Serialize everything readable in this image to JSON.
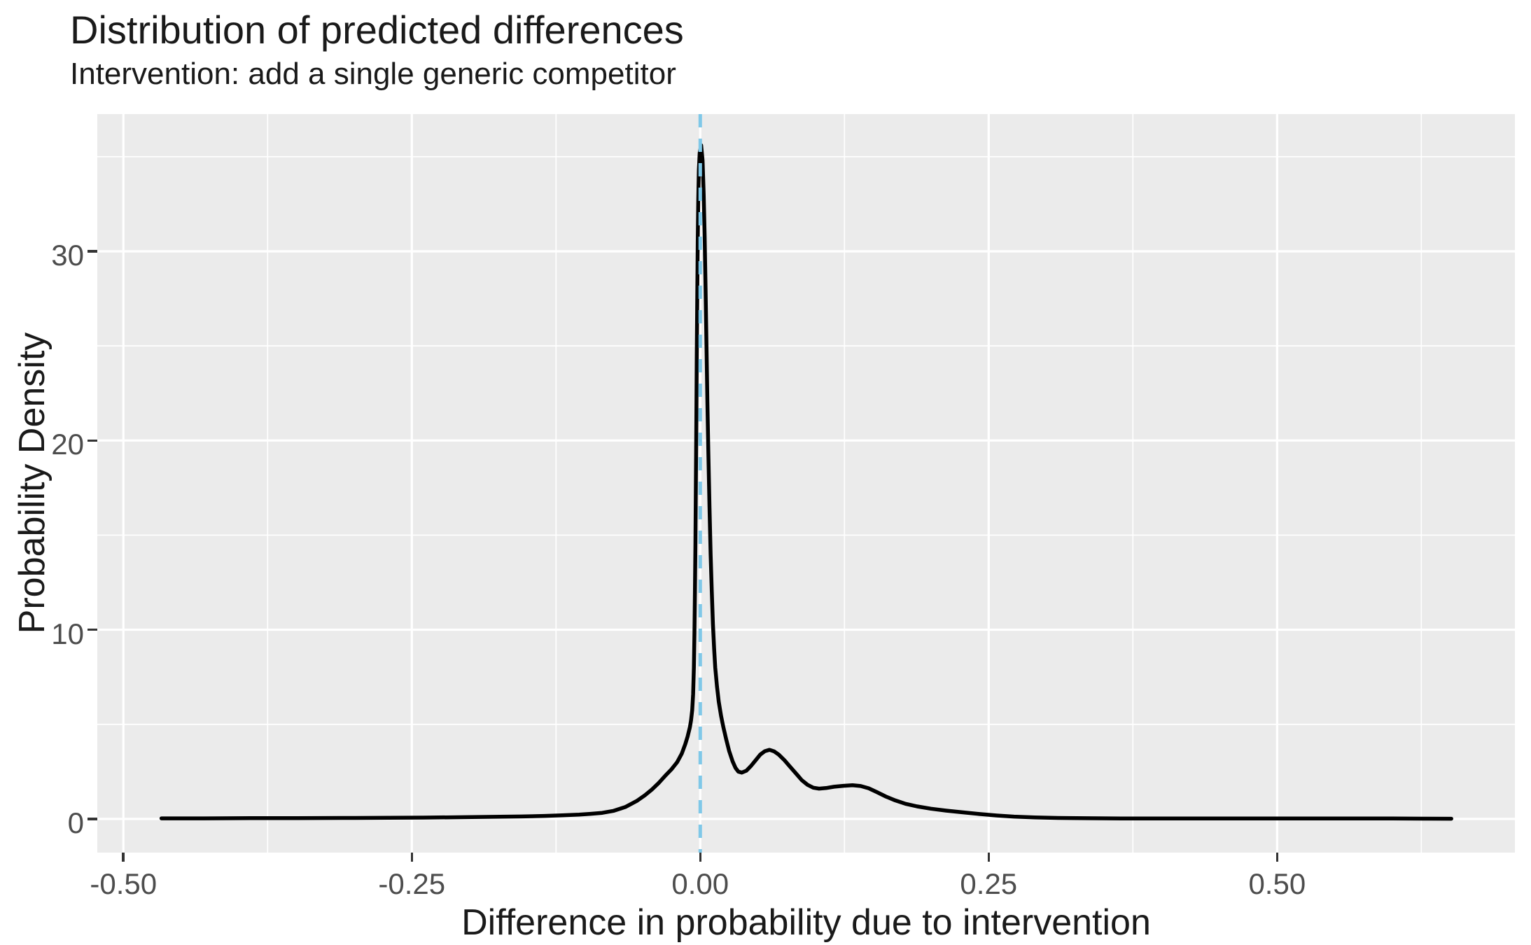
{
  "chart_data": {
    "type": "line",
    "plot_kind": "density",
    "title": "Distribution of predicted differences",
    "subtitle": "Intervention: add a single generic competitor",
    "xlabel": "Difference in probability due to intervention",
    "ylabel": "Probability Density",
    "xlim": [
      -0.5226,
      0.7061
    ],
    "ylim": [
      -1.78,
      37.25
    ],
    "grid": "on",
    "legend": "none",
    "x_ticks": [
      {
        "value": -0.5,
        "label": "-0.50"
      },
      {
        "value": -0.25,
        "label": "-0.25"
      },
      {
        "value": 0.0,
        "label": "0.00"
      },
      {
        "value": 0.25,
        "label": "0.25"
      },
      {
        "value": 0.5,
        "label": "0.50"
      }
    ],
    "y_ticks": [
      {
        "value": 0,
        "label": "0"
      },
      {
        "value": 10,
        "label": "10"
      },
      {
        "value": 20,
        "label": "20"
      },
      {
        "value": 30,
        "label": "30"
      }
    ],
    "x_minor": [
      -0.375,
      -0.125,
      0.125,
      0.375,
      0.625
    ],
    "y_minor": [
      5,
      15,
      25,
      35
    ],
    "series": [
      {
        "name": "density",
        "color": "#000000",
        "points": [
          [
            -0.467,
            0.03
          ],
          [
            -0.43,
            0.03
          ],
          [
            -0.39,
            0.04
          ],
          [
            -0.35,
            0.04
          ],
          [
            -0.31,
            0.05
          ],
          [
            -0.27,
            0.06
          ],
          [
            -0.24,
            0.07
          ],
          [
            -0.21,
            0.09
          ],
          [
            -0.18,
            0.11
          ],
          [
            -0.155,
            0.13
          ],
          [
            -0.135,
            0.16
          ],
          [
            -0.12,
            0.19
          ],
          [
            -0.105,
            0.23
          ],
          [
            -0.095,
            0.27
          ],
          [
            -0.085,
            0.32
          ],
          [
            -0.075,
            0.43
          ],
          [
            -0.065,
            0.63
          ],
          [
            -0.055,
            0.95
          ],
          [
            -0.048,
            1.25
          ],
          [
            -0.042,
            1.55
          ],
          [
            -0.036,
            1.9
          ],
          [
            -0.03,
            2.3
          ],
          [
            -0.025,
            2.62
          ],
          [
            -0.02,
            3.0
          ],
          [
            -0.016,
            3.45
          ],
          [
            -0.013,
            3.95
          ],
          [
            -0.011,
            4.35
          ],
          [
            -0.009,
            4.85
          ],
          [
            -0.008,
            5.2
          ],
          [
            -0.007,
            5.75
          ],
          [
            -0.0062,
            6.6
          ],
          [
            -0.0055,
            8.0
          ],
          [
            -0.005,
            9.8
          ],
          [
            -0.0046,
            12.0
          ],
          [
            -0.0042,
            14.5
          ],
          [
            -0.0038,
            17.5
          ],
          [
            -0.0034,
            21.0
          ],
          [
            -0.003,
            24.5
          ],
          [
            -0.0026,
            27.5
          ],
          [
            -0.0022,
            30.5
          ],
          [
            -0.0017,
            32.8
          ],
          [
            -0.0012,
            34.3
          ],
          [
            -0.0005,
            35.2
          ],
          [
            0.0008,
            35.6
          ],
          [
            0.002,
            34.8
          ],
          [
            0.003,
            33.0
          ],
          [
            0.0038,
            30.8
          ],
          [
            0.0046,
            28.0
          ],
          [
            0.0054,
            25.0
          ],
          [
            0.0062,
            22.0
          ],
          [
            0.007,
            19.5
          ],
          [
            0.008,
            16.5
          ],
          [
            0.009,
            14.0
          ],
          [
            0.01,
            12.0
          ],
          [
            0.011,
            10.3
          ],
          [
            0.012,
            9.0
          ],
          [
            0.013,
            8.0
          ],
          [
            0.0145,
            7.0
          ],
          [
            0.016,
            6.2
          ],
          [
            0.018,
            5.45
          ],
          [
            0.02,
            4.85
          ],
          [
            0.0225,
            4.2
          ],
          [
            0.025,
            3.6
          ],
          [
            0.028,
            3.05
          ],
          [
            0.0305,
            2.7
          ],
          [
            0.033,
            2.5
          ],
          [
            0.036,
            2.45
          ],
          [
            0.04,
            2.55
          ],
          [
            0.044,
            2.8
          ],
          [
            0.048,
            3.1
          ],
          [
            0.052,
            3.4
          ],
          [
            0.056,
            3.58
          ],
          [
            0.06,
            3.65
          ],
          [
            0.064,
            3.57
          ],
          [
            0.068,
            3.4
          ],
          [
            0.073,
            3.1
          ],
          [
            0.078,
            2.75
          ],
          [
            0.083,
            2.4
          ],
          [
            0.088,
            2.05
          ],
          [
            0.093,
            1.8
          ],
          [
            0.098,
            1.65
          ],
          [
            0.103,
            1.6
          ],
          [
            0.109,
            1.63
          ],
          [
            0.116,
            1.7
          ],
          [
            0.124,
            1.75
          ],
          [
            0.132,
            1.78
          ],
          [
            0.139,
            1.74
          ],
          [
            0.146,
            1.62
          ],
          [
            0.153,
            1.42
          ],
          [
            0.161,
            1.18
          ],
          [
            0.169,
            0.98
          ],
          [
            0.178,
            0.8
          ],
          [
            0.188,
            0.66
          ],
          [
            0.2,
            0.54
          ],
          [
            0.213,
            0.44
          ],
          [
            0.227,
            0.35
          ],
          [
            0.242,
            0.26
          ],
          [
            0.257,
            0.18
          ],
          [
            0.272,
            0.12
          ],
          [
            0.29,
            0.08
          ],
          [
            0.31,
            0.05
          ],
          [
            0.335,
            0.035
          ],
          [
            0.365,
            0.025
          ],
          [
            0.4,
            0.02
          ],
          [
            0.45,
            0.02
          ],
          [
            0.5,
            0.02
          ],
          [
            0.55,
            0.02
          ],
          [
            0.6,
            0.02
          ],
          [
            0.63,
            0.015
          ],
          [
            0.651,
            0.01
          ]
        ]
      }
    ],
    "reference_lines": [
      {
        "axis": "x",
        "value": 0,
        "style": "dashed",
        "color": "#7FC8E8"
      }
    ],
    "style": {
      "panel_bg": "#EBEBEB",
      "grid_color": "#FFFFFF",
      "curve_color": "#000000",
      "tick_color": "#333333",
      "tick_label_color": "#4D4D4D",
      "text_color": "#1A1A1A"
    }
  }
}
